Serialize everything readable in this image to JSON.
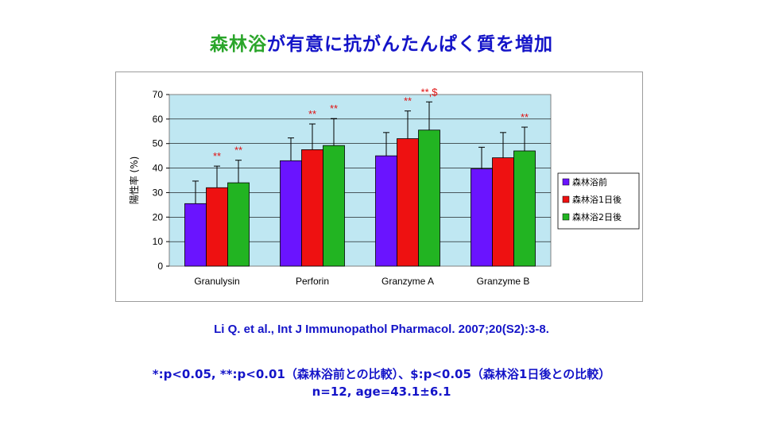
{
  "title": {
    "highlight": "森林浴",
    "rest": "が有意に抗がんたんぱく質を増加"
  },
  "citation": "Li Q. et al., Int J Immunopathol Pharmacol. 2007;20(S2):3-8.",
  "notes": [
    "*:p<0.05, **:p<0.01（森林浴前との比較）、$:p<0.05（森林浴1日後との比較）",
    "n=12, age=43.1±6.1"
  ],
  "colors": {
    "plot_bg": "#bfe7f2",
    "bar_stroke": "#000000",
    "sig": "#e01010"
  },
  "chart_data": {
    "type": "bar",
    "ylabel": "陽性率 (%)",
    "ylim": [
      0,
      70
    ],
    "yticks": [
      "0",
      "10",
      "20",
      "30",
      "40",
      "50",
      "60",
      "70"
    ],
    "grid": true,
    "legend_position": "right",
    "categories": [
      "Granulysin",
      "Perforin",
      "Granzyme A",
      "Granzyme B"
    ],
    "series": [
      {
        "name": "森林浴前",
        "color": "#6a14ff",
        "values": [
          25.5,
          43,
          45,
          39.7
        ],
        "errors": [
          9.2,
          9.3,
          9.5,
          8.8
        ],
        "sig": [
          "",
          "",
          "",
          ""
        ]
      },
      {
        "name": "森林浴1日後",
        "color": "#ee1111",
        "values": [
          32,
          47.5,
          52,
          44.2
        ],
        "errors": [
          8.8,
          10.5,
          11.3,
          10.3
        ],
        "sig": [
          "**",
          "**",
          "**",
          ""
        ]
      },
      {
        "name": "森林浴2日後",
        "color": "#22b422",
        "values": [
          34,
          49.2,
          55.5,
          47
        ],
        "errors": [
          9.2,
          11,
          11.5,
          9.7
        ],
        "sig": [
          "**",
          "**",
          "**,$",
          "**"
        ]
      }
    ]
  }
}
